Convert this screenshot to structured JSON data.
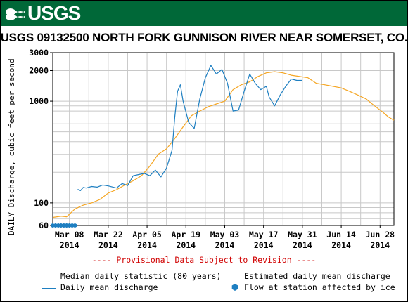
{
  "header": {
    "logo_text": "USGS",
    "banner_color": "#006838"
  },
  "chart_data": {
    "type": "line",
    "title": "USGS 09132500 NORTH FORK GUNNISON RIVER NEAR SOMERSET, CO.",
    "ylabel": "DAILY Discharge, cubic feet per second",
    "xlabel": "",
    "y_scale": "log",
    "ylim": [
      60,
      3000
    ],
    "y_ticks": [
      60,
      100,
      1000,
      2000,
      3000
    ],
    "xlim": [
      "2014-03-02",
      "2014-07-03"
    ],
    "x_ticks": [
      {
        "date": "2014-03-08",
        "label": "Mar 08",
        "year": "2014"
      },
      {
        "date": "2014-03-22",
        "label": "Mar 22",
        "year": "2014"
      },
      {
        "date": "2014-04-05",
        "label": "Apr 05",
        "year": "2014"
      },
      {
        "date": "2014-04-19",
        "label": "Apr 19",
        "year": "2014"
      },
      {
        "date": "2014-05-03",
        "label": "May 03",
        "year": "2014"
      },
      {
        "date": "2014-05-17",
        "label": "May 17",
        "year": "2014"
      },
      {
        "date": "2014-05-31",
        "label": "May 31",
        "year": "2014"
      },
      {
        "date": "2014-06-14",
        "label": "Jun 14",
        "year": "2014"
      },
      {
        "date": "2014-06-28",
        "label": "Jun 28",
        "year": "2014"
      }
    ],
    "grid": true,
    "legend_placement": "bottom",
    "series": [
      {
        "name": "Median daily statistic (80 years)",
        "color": "#f5a623",
        "points": [
          [
            "2014-03-02",
            72
          ],
          [
            "2014-03-05",
            74
          ],
          [
            "2014-03-07",
            73
          ],
          [
            "2014-03-10",
            87
          ],
          [
            "2014-03-13",
            95
          ],
          [
            "2014-03-16",
            100
          ],
          [
            "2014-03-19",
            108
          ],
          [
            "2014-03-22",
            125
          ],
          [
            "2014-03-25",
            135
          ],
          [
            "2014-03-28",
            150
          ],
          [
            "2014-03-31",
            165
          ],
          [
            "2014-04-03",
            185
          ],
          [
            "2014-04-06",
            230
          ],
          [
            "2014-04-09",
            300
          ],
          [
            "2014-04-12",
            340
          ],
          [
            "2014-04-15",
            430
          ],
          [
            "2014-04-18",
            560
          ],
          [
            "2014-04-21",
            720
          ],
          [
            "2014-04-24",
            800
          ],
          [
            "2014-04-27",
            880
          ],
          [
            "2014-04-30",
            940
          ],
          [
            "2014-05-03",
            1000
          ],
          [
            "2014-05-06",
            1300
          ],
          [
            "2014-05-09",
            1450
          ],
          [
            "2014-05-12",
            1550
          ],
          [
            "2014-05-15",
            1750
          ],
          [
            "2014-05-18",
            1900
          ],
          [
            "2014-05-21",
            1950
          ],
          [
            "2014-05-24",
            1900
          ],
          [
            "2014-05-27",
            1800
          ],
          [
            "2014-05-30",
            1750
          ],
          [
            "2014-06-02",
            1700
          ],
          [
            "2014-06-05",
            1500
          ],
          [
            "2014-06-08",
            1450
          ],
          [
            "2014-06-11",
            1400
          ],
          [
            "2014-06-14",
            1350
          ],
          [
            "2014-06-17",
            1250
          ],
          [
            "2014-06-20",
            1150
          ],
          [
            "2014-06-23",
            1050
          ],
          [
            "2014-06-26",
            900
          ],
          [
            "2014-06-29",
            780
          ],
          [
            "2014-07-01",
            700
          ],
          [
            "2014-07-03",
            650
          ]
        ]
      },
      {
        "name": "Estimated daily mean discharge",
        "color": "#cc0000",
        "points": []
      },
      {
        "name": "Daily mean discharge",
        "color": "#1e7fc1",
        "points": [
          [
            "2014-03-11",
            136
          ],
          [
            "2014-03-12",
            132
          ],
          [
            "2014-03-13",
            142
          ],
          [
            "2014-03-14",
            140
          ],
          [
            "2014-03-16",
            145
          ],
          [
            "2014-03-18",
            143
          ],
          [
            "2014-03-20",
            150
          ],
          [
            "2014-03-22",
            147
          ],
          [
            "2014-03-25",
            140
          ],
          [
            "2014-03-27",
            155
          ],
          [
            "2014-03-29",
            148
          ],
          [
            "2014-03-31",
            185
          ],
          [
            "2014-04-02",
            190
          ],
          [
            "2014-04-04",
            195
          ],
          [
            "2014-04-06",
            185
          ],
          [
            "2014-04-08",
            210
          ],
          [
            "2014-04-10",
            180
          ],
          [
            "2014-04-12",
            220
          ],
          [
            "2014-04-14",
            330
          ],
          [
            "2014-04-15",
            700
          ],
          [
            "2014-04-16",
            1250
          ],
          [
            "2014-04-17",
            1450
          ],
          [
            "2014-04-18",
            1000
          ],
          [
            "2014-04-20",
            620
          ],
          [
            "2014-04-22",
            540
          ],
          [
            "2014-04-24",
            1050
          ],
          [
            "2014-04-26",
            1700
          ],
          [
            "2014-04-28",
            2250
          ],
          [
            "2014-04-30",
            1850
          ],
          [
            "2014-05-02",
            2050
          ],
          [
            "2014-05-04",
            1500
          ],
          [
            "2014-05-06",
            800
          ],
          [
            "2014-05-08",
            820
          ],
          [
            "2014-05-10",
            1250
          ],
          [
            "2014-05-12",
            1850
          ],
          [
            "2014-05-14",
            1500
          ],
          [
            "2014-05-16",
            1300
          ],
          [
            "2014-05-18",
            1400
          ],
          [
            "2014-05-19",
            1100
          ],
          [
            "2014-05-21",
            900
          ],
          [
            "2014-05-23",
            1150
          ],
          [
            "2014-05-25",
            1400
          ],
          [
            "2014-05-27",
            1650
          ],
          [
            "2014-05-29",
            1600
          ],
          [
            "2014-05-31",
            1600
          ]
        ]
      }
    ],
    "ice_points": {
      "name": "Flow at station affected by ice",
      "color": "#1e7fc1",
      "dates": [
        "2014-03-02",
        "2014-03-03",
        "2014-03-04",
        "2014-03-05",
        "2014-03-06",
        "2014-03-07",
        "2014-03-08",
        "2014-03-09",
        "2014-03-10"
      ],
      "value": 60
    },
    "provisional_note": "---- Provisional Data Subject to Revision ----",
    "provisional_color": "#d00000"
  }
}
